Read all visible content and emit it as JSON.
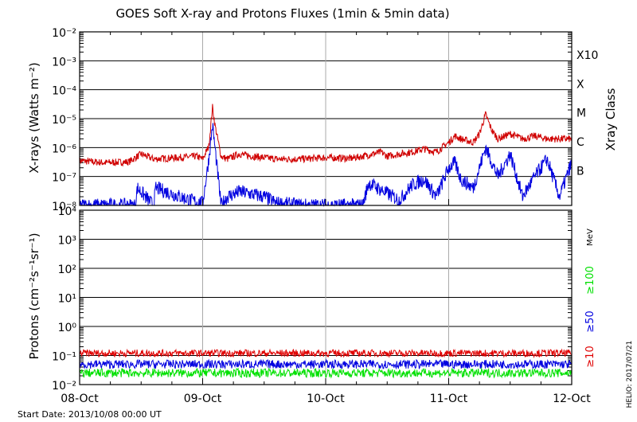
{
  "chart_data": [
    {
      "type": "line",
      "title": "GOES Soft X-ray and Protons Fluxes   (1min & 5min data)",
      "ylabel": "X-rays (Watts m⁻²)",
      "yscale": "log",
      "ylim": [
        1e-08,
        0.01
      ],
      "y_ticks": [
        "10⁻⁸",
        "10⁻⁷",
        "10⁻⁶",
        "10⁻⁵",
        "10⁻⁴",
        "10⁻³",
        "10⁻²"
      ],
      "x_ticks": [
        "08-Oct",
        "09-Oct",
        "10-Oct",
        "11-Oct",
        "12-Oct"
      ],
      "right_axis_label": "Xray Class",
      "class_labels": [
        "B",
        "C",
        "M",
        "X",
        "X10"
      ],
      "grid": true,
      "series": [
        {
          "color": "#d00000",
          "x": [
            0,
            0.2,
            0.4,
            0.5,
            0.6,
            0.8,
            0.95,
            1.0,
            1.05,
            1.08,
            1.1,
            1.15,
            1.2,
            1.3,
            1.4,
            1.5,
            1.6,
            1.8,
            2.0,
            2.2,
            2.3,
            2.45,
            2.5,
            2.6,
            2.7,
            2.8,
            2.9,
            3.0,
            3.05,
            3.1,
            3.2,
            3.25,
            3.3,
            3.35,
            3.4,
            3.5,
            3.6,
            3.7,
            3.8,
            3.9,
            4.0
          ],
          "values": [
            3.5e-07,
            3e-07,
            3.2e-07,
            6e-07,
            4e-07,
            4.5e-07,
            5e-07,
            4e-07,
            1.1e-06,
            2.5e-05,
            6e-06,
            5e-07,
            4e-07,
            6e-07,
            5e-07,
            4.5e-07,
            4e-07,
            4e-07,
            4.5e-07,
            4.2e-07,
            5e-07,
            7e-07,
            5e-07,
            6e-07,
            7e-07,
            9e-07,
            7e-07,
            1.5e-06,
            2.5e-06,
            2e-06,
            1.5e-06,
            3e-06,
            1.4e-05,
            4e-06,
            2e-06,
            3e-06,
            2e-06,
            2.5e-06,
            2e-06,
            2e-06,
            2e-06
          ]
        },
        {
          "color": "#0000e0",
          "x": [
            0,
            0.45,
            0.47,
            0.6,
            0.62,
            0.9,
            1.0,
            1.05,
            1.08,
            1.1,
            1.15,
            1.2,
            1.3,
            1.5,
            1.6,
            1.8,
            2.0,
            2.3,
            2.35,
            2.6,
            2.7,
            2.8,
            2.9,
            3.0,
            3.05,
            3.1,
            3.2,
            3.3,
            3.4,
            3.5,
            3.6,
            3.7,
            3.8,
            3.9,
            4.0
          ],
          "values": [
            1e-08,
            1e-08,
            4e-08,
            1e-08,
            4e-08,
            1.5e-08,
            1.2e-08,
            4e-07,
            6e-06,
            1e-06,
            1e-08,
            2e-08,
            3e-08,
            2e-08,
            1.2e-08,
            1e-08,
            1e-08,
            1e-08,
            6e-08,
            1.5e-08,
            5e-08,
            8e-08,
            2e-08,
            2e-07,
            3e-07,
            8e-08,
            4e-08,
            1e-06,
            1e-07,
            6e-07,
            2e-08,
            1e-07,
            4e-07,
            2e-08,
            3e-07
          ]
        }
      ]
    },
    {
      "type": "line",
      "ylabel": "Protons (cm⁻²s⁻¹sr⁻¹)",
      "yscale": "log",
      "ylim": [
        0.01,
        10000
      ],
      "y_ticks": [
        "10⁻²",
        "10⁻¹",
        "10⁰",
        "10¹",
        "10²",
        "10³",
        "10⁴"
      ],
      "x_ticks": [
        "08-Oct",
        "09-Oct",
        "10-Oct",
        "11-Oct",
        "12-Oct"
      ],
      "threshold": 10,
      "unit_label": "MeV",
      "series": [
        {
          "name": "≥10",
          "color": "#e00000",
          "base": 0.12,
          "noise": 0.25
        },
        {
          "name": "≥50",
          "color": "#0000e0",
          "base": 0.05,
          "noise": 0.3
        },
        {
          "name": "≥100",
          "color": "#00e000",
          "base": 0.025,
          "noise": 0.3
        }
      ]
    }
  ],
  "footer": {
    "start_date": "Start Date: 2013/10/08 00:00 UT",
    "credit": "HELIO: 2017/07/21"
  }
}
